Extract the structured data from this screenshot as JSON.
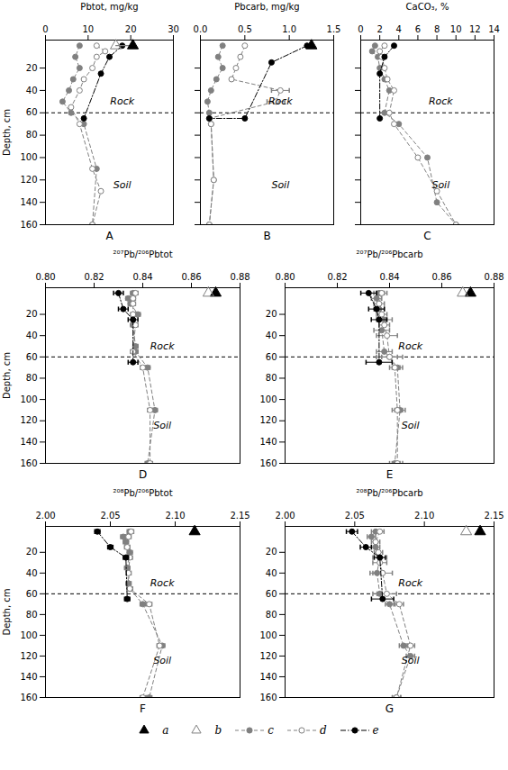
{
  "chart_data": [
    {
      "type": "line",
      "title": "A",
      "xlabel": "Pbtot, mg/kg",
      "ylabel": "Depth, cm",
      "xlim": [
        0,
        30
      ],
      "xticks": [
        0,
        10,
        20,
        30
      ],
      "ylim": [
        160,
        -5
      ],
      "yticks": [
        20,
        40,
        60,
        80,
        100,
        120,
        140,
        160
      ],
      "hline": 60,
      "annotations": [
        "Soil",
        "Rock"
      ],
      "legend": "bottom",
      "ref_segment": {
        "x": [
          16.5,
          20.5
        ],
        "y": [
          0,
          0
        ],
        "color": "gray"
      },
      "series": [
        {
          "name": "a",
          "color": "black",
          "marker": "triangle",
          "line_style": "none",
          "x": [
            20.5
          ],
          "y": [
            0
          ]
        },
        {
          "name": "b",
          "color": "gray",
          "marker": "open_triangle",
          "line_style": "none",
          "x": [
            16.5
          ],
          "y": [
            0
          ]
        },
        {
          "name": "c",
          "color": "#808080",
          "marker": "circle",
          "line_style": "dashed",
          "x": [
            8,
            7,
            8,
            6.5,
            5.5,
            4,
            6,
            9,
            12,
            11
          ],
          "y": [
            0,
            10,
            20,
            30,
            40,
            50,
            60,
            70,
            110,
            160
          ]
        },
        {
          "name": "d",
          "color": "#808080",
          "marker": "open_circle",
          "line_style": "dashed",
          "x": [
            12,
            14,
            12,
            11,
            9,
            8,
            6,
            8,
            11,
            13,
            11
          ],
          "y": [
            0,
            5,
            10,
            20,
            30,
            40,
            55,
            70,
            110,
            130,
            160
          ]
        },
        {
          "name": "e",
          "color": "black",
          "marker": "circle",
          "line_style": "dashdot",
          "x": [
            18,
            15,
            13,
            9
          ],
          "y": [
            0,
            10,
            25,
            65
          ]
        }
      ]
    },
    {
      "type": "line",
      "title": "B",
      "xlabel": "Pbcarb, mg/kg",
      "tick_labels": "x",
      "xlim": [
        0,
        1.5
      ],
      "xticks": [
        {
          "value": 0,
          "label": "0.0"
        },
        0.5,
        {
          "value": 1,
          "label": "1.0"
        },
        1.5
      ],
      "ylim": [
        160,
        -5
      ],
      "yticks": [
        20,
        40,
        60,
        80,
        100,
        120,
        140,
        160
      ],
      "hline": 60,
      "annotations": [
        "Soil",
        "Rock"
      ],
      "series": [
        {
          "name": "a",
          "color": "black",
          "marker": "triangle",
          "line_style": "none",
          "x": [
            1.25
          ],
          "y": [
            0
          ]
        },
        {
          "name": "c",
          "color": "#808080",
          "marker": "circle",
          "line_style": "dashed",
          "x": [
            0.25,
            0.2,
            0.25,
            0.18,
            0.12,
            0.08,
            0.1,
            0.12,
            0.15,
            0.1
          ],
          "y": [
            0,
            10,
            20,
            30,
            40,
            50,
            60,
            70,
            120,
            160
          ]
        },
        {
          "name": "d",
          "color": "#808080",
          "marker": "open_circle",
          "line_style": "dashed",
          "x": [
            0.5,
            0.45,
            0.4,
            0.35,
            0.9,
            0.85,
            0.1,
            0.12,
            0.15,
            0.1
          ],
          "y": [
            0,
            10,
            20,
            30,
            40,
            50,
            65,
            70,
            120,
            160
          ],
          "xerr": [
            0,
            0,
            0,
            0,
            0.1,
            0.1,
            0,
            0,
            0,
            0
          ]
        },
        {
          "name": "e",
          "color": "black",
          "marker": "circle",
          "line_style": "dashdot",
          "x": [
            1.2,
            0.8,
            0.5,
            0.1
          ],
          "y": [
            0,
            15,
            65,
            65
          ]
        }
      ]
    },
    {
      "type": "line",
      "title": "C",
      "xlabel": "CaCO₃, %",
      "tick_labels": "x",
      "xlim": [
        0,
        14
      ],
      "xticks": [
        0,
        2,
        4,
        6,
        8,
        10,
        12,
        14
      ],
      "ylim": [
        160,
        -5
      ],
      "yticks": [
        20,
        40,
        60,
        80,
        100,
        120,
        140,
        160
      ],
      "hline": 60,
      "annotations": [
        "Soil",
        "Rock"
      ],
      "series": [
        {
          "name": "c",
          "color": "#808080",
          "marker": "circle",
          "line_style": "dashed",
          "x": [
            1.5,
            1.2,
            1.8,
            2.0,
            2.5,
            3.0,
            2.5,
            4,
            7,
            8,
            10
          ],
          "y": [
            0,
            5,
            10,
            20,
            30,
            40,
            60,
            70,
            100,
            140,
            160
          ]
        },
        {
          "name": "d",
          "color": "#808080",
          "marker": "open_circle",
          "line_style": "dashed",
          "x": [
            2.5,
            2.0,
            2.2,
            2.5,
            2.8,
            3.5,
            3.0,
            3.5,
            6,
            8,
            10
          ],
          "y": [
            0,
            5,
            10,
            20,
            30,
            40,
            60,
            70,
            100,
            130,
            160
          ]
        },
        {
          "name": "e",
          "color": "black",
          "marker": "circle",
          "line_style": "dashdot",
          "x": [
            3.5,
            2.5,
            2.0,
            2.0
          ],
          "y": [
            0,
            10,
            25,
            65
          ]
        }
      ]
    },
    {
      "type": "line",
      "title": "D",
      "xlabel": "²⁰⁷Pb/²⁰⁶Pbtot",
      "ylabel": "Depth, cm",
      "xlim": [
        0.8,
        0.88
      ],
      "xticks": [
        {
          "value": 0.8,
          "label": "0.80"
        },
        0.82,
        0.84,
        0.86,
        0.88
      ],
      "ylim": [
        160,
        -5
      ],
      "yticks": [
        20,
        40,
        60,
        80,
        100,
        120,
        140,
        160
      ],
      "hline": 60,
      "annotations": [
        "Soil",
        "Rock"
      ],
      "series": [
        {
          "name": "a",
          "color": "black",
          "marker": "triangle",
          "line_style": "none",
          "x": [
            0.87
          ],
          "y": [
            0
          ]
        },
        {
          "name": "b",
          "color": "gray",
          "marker": "open_triangle",
          "line_style": "none",
          "x": [
            0.867
          ],
          "y": [
            0
          ]
        },
        {
          "name": "c",
          "color": "#808080",
          "marker": "circle",
          "line_style": "dashed",
          "x": [
            0.836,
            0.834,
            0.835,
            0.838,
            0.836,
            0.837,
            0.837,
            0.842,
            0.845,
            0.842
          ],
          "y": [
            0,
            5,
            10,
            20,
            30,
            50,
            55,
            70,
            110,
            160
          ],
          "xerr": [
            0.001,
            0.001,
            0.001,
            0.001,
            0.001,
            0.001,
            0.001,
            0.001,
            0.001,
            0.001
          ]
        },
        {
          "name": "d",
          "color": "#808080",
          "marker": "open_circle",
          "line_style": "dashed",
          "x": [
            0.837,
            0.836,
            0.836,
            0.836,
            0.837,
            0.836,
            0.84,
            0.843,
            0.843
          ],
          "y": [
            0,
            5,
            10,
            20,
            30,
            55,
            70,
            110,
            160
          ],
          "xerr": [
            0.001,
            0.001,
            0.001,
            0.001,
            0.001,
            0.001,
            0.001,
            0.001,
            0.001
          ]
        },
        {
          "name": "e",
          "color": "black",
          "marker": "circle",
          "line_style": "dashdot",
          "x": [
            0.83,
            0.832,
            0.836,
            0.836
          ],
          "y": [
            0,
            15,
            25,
            65
          ],
          "xerr": [
            0.002,
            0.002,
            0.002,
            0.002
          ]
        }
      ]
    },
    {
      "type": "line",
      "title": "E",
      "xlabel": "²⁰⁷Pb/²⁰⁶Pbcarb",
      "xlim": [
        0.8,
        0.88
      ],
      "xticks": [
        {
          "value": 0.8,
          "label": "0.80"
        },
        0.82,
        0.84,
        0.86,
        0.88
      ],
      "ylim": [
        160,
        -5
      ],
      "yticks": [
        20,
        40,
        60,
        80,
        100,
        120,
        140,
        160
      ],
      "hline": 60,
      "annotations": [
        "Soil",
        "Rock"
      ],
      "series": [
        {
          "name": "a",
          "color": "black",
          "marker": "triangle",
          "line_style": "none",
          "x": [
            0.871
          ],
          "y": [
            0
          ]
        },
        {
          "name": "b",
          "color": "gray",
          "marker": "open_triangle",
          "line_style": "none",
          "x": [
            0.868
          ],
          "y": [
            0
          ]
        },
        {
          "name": "c",
          "color": "#808080",
          "marker": "circle",
          "line_style": "dashed",
          "x": [
            0.836,
            0.835,
            0.836,
            0.838,
            0.837,
            0.838,
            0.84,
            0.843,
            0.844,
            0.842
          ],
          "y": [
            0,
            5,
            15,
            25,
            35,
            55,
            60,
            70,
            110,
            160
          ],
          "xerr": [
            0.002,
            0.002,
            0.002,
            0.003,
            0.003,
            0.003,
            0.003,
            0.002,
            0.002,
            0.002
          ]
        },
        {
          "name": "d",
          "color": "#808080",
          "marker": "open_circle",
          "line_style": "dashed",
          "x": [
            0.837,
            0.836,
            0.837,
            0.838,
            0.839,
            0.84,
            0.842,
            0.843,
            0.843
          ],
          "y": [
            0,
            10,
            20,
            30,
            40,
            60,
            70,
            110,
            160
          ],
          "xerr": [
            0.002,
            0.002,
            0.002,
            0.002,
            0.004,
            0.005,
            0.002,
            0.002,
            0.002
          ]
        },
        {
          "name": "e",
          "color": "black",
          "marker": "circle",
          "line_style": "dashdot",
          "x": [
            0.832,
            0.835,
            0.836,
            0.836
          ],
          "y": [
            0,
            15,
            25,
            65
          ],
          "xerr": [
            0.003,
            0.003,
            0.003,
            0.005
          ]
        }
      ]
    },
    {
      "type": "line",
      "title": "F",
      "xlabel": "²⁰⁸Pb/²⁰⁶Pbtot",
      "ylabel": "Depth, cm",
      "xlim": [
        2.0,
        2.15
      ],
      "xticks": [
        {
          "value": 2,
          "label": "2.00"
        },
        2.05,
        {
          "value": 2.1,
          "label": "2.10"
        },
        2.15
      ],
      "ylim": [
        160,
        -5
      ],
      "yticks": [
        20,
        40,
        60,
        80,
        100,
        120,
        140,
        160
      ],
      "hline": 60,
      "annotations": [
        "Soil",
        "Rock"
      ],
      "series": [
        {
          "name": "a",
          "color": "black",
          "marker": "triangle",
          "line_style": "none",
          "x": [
            2.115
          ],
          "y": [
            0
          ]
        },
        {
          "name": "c",
          "color": "#808080",
          "marker": "circle",
          "line_style": "dashed",
          "x": [
            2.065,
            2.06,
            2.062,
            2.065,
            2.063,
            2.064,
            2.065,
            2.075,
            2.09,
            2.08
          ],
          "y": [
            0,
            5,
            10,
            20,
            35,
            50,
            55,
            70,
            110,
            160
          ],
          "xerr": [
            0.002,
            0.002,
            0.002,
            0.002,
            0.002,
            0.002,
            0.002,
            0.002,
            0.002,
            0.002
          ]
        },
        {
          "name": "d",
          "color": "#808080",
          "marker": "open_circle",
          "line_style": "dashed",
          "x": [
            2.066,
            2.064,
            2.063,
            2.065,
            2.064,
            2.065,
            2.08,
            2.088,
            2.075
          ],
          "y": [
            0,
            5,
            15,
            25,
            40,
            55,
            70,
            110,
            160
          ],
          "xerr": [
            0.002,
            0.002,
            0.002,
            0.002,
            0.002,
            0.002,
            0.002,
            0.002,
            0.002
          ]
        },
        {
          "name": "e",
          "color": "black",
          "marker": "circle",
          "line_style": "dashdot",
          "x": [
            2.04,
            2.05,
            2.062,
            2.063
          ],
          "y": [
            0,
            15,
            25,
            65
          ],
          "xerr": [
            0.002,
            0.002,
            0.002,
            0.002
          ]
        }
      ]
    },
    {
      "type": "line",
      "title": "G",
      "xlabel": "²⁰⁸Pb/²⁰⁶Pbcarb",
      "xlim": [
        2.0,
        2.15
      ],
      "xticks": [
        {
          "value": 2,
          "label": "2.00"
        },
        2.05,
        {
          "value": 2.1,
          "label": "2.10"
        },
        2.15
      ],
      "ylim": [
        160,
        -5
      ],
      "yticks": [
        20,
        40,
        60,
        80,
        100,
        120,
        140,
        160
      ],
      "hline": 60,
      "annotations": [
        "Soil",
        "Rock"
      ],
      "series": [
        {
          "name": "a",
          "color": "black",
          "marker": "triangle",
          "line_style": "none",
          "x": [
            2.14
          ],
          "y": [
            0
          ]
        },
        {
          "name": "b",
          "color": "gray",
          "marker": "open_triangle",
          "line_style": "none",
          "x": [
            2.13
          ],
          "y": [
            0
          ]
        },
        {
          "name": "c",
          "color": "#808080",
          "marker": "circle",
          "line_style": "dashed",
          "x": [
            2.065,
            2.062,
            2.065,
            2.068,
            2.066,
            2.068,
            2.075,
            2.085,
            2.09,
            2.08
          ],
          "y": [
            0,
            5,
            15,
            25,
            40,
            60,
            70,
            110,
            120,
            160
          ],
          "xerr": [
            0.003,
            0.003,
            0.003,
            0.005,
            0.005,
            0.005,
            0.003,
            0.003,
            0.003,
            0.003
          ]
        },
        {
          "name": "d",
          "color": "#808080",
          "marker": "open_circle",
          "line_style": "dashed",
          "x": [
            2.068,
            2.065,
            2.067,
            2.068,
            2.07,
            2.073,
            2.082,
            2.09,
            2.08
          ],
          "y": [
            0,
            10,
            20,
            30,
            40,
            60,
            70,
            110,
            160
          ],
          "xerr": [
            0.003,
            0.003,
            0.003,
            0.005,
            0.007,
            0.007,
            0.003,
            0.003,
            0.003
          ]
        },
        {
          "name": "e",
          "color": "black",
          "marker": "circle",
          "line_style": "dashdot",
          "x": [
            2.048,
            2.058,
            2.068,
            2.07
          ],
          "y": [
            0,
            15,
            25,
            65
          ],
          "xerr": [
            0.004,
            0.004,
            0.004,
            0.008
          ]
        }
      ]
    }
  ]
}
